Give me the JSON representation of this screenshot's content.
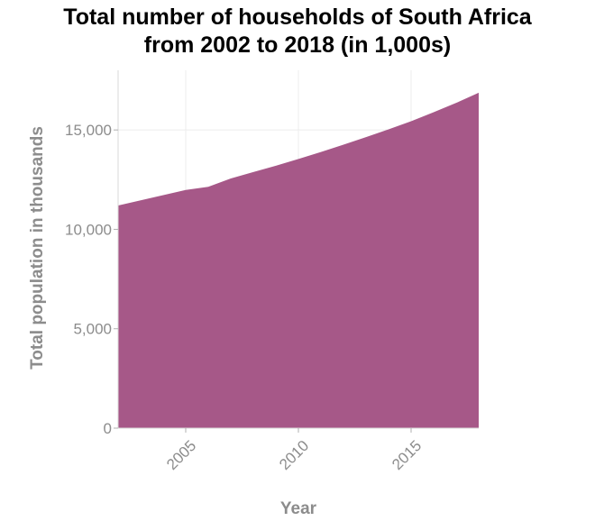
{
  "chart_data": {
    "type": "area",
    "title_lines": [
      "Total number of households of South Africa",
      "from 2002 to 2018 (in 1,000s)"
    ],
    "xlabel": "Year",
    "ylabel": "Total population in thousands",
    "x": [
      2002,
      2003,
      2004,
      2005,
      2006,
      2007,
      2008,
      2009,
      2010,
      2011,
      2012,
      2013,
      2014,
      2015,
      2016,
      2017,
      2018
    ],
    "series": [
      {
        "values": [
          11200,
          11460,
          11720,
          11980,
          12140,
          12560,
          12880,
          13200,
          13540,
          13890,
          14260,
          14640,
          15030,
          15440,
          15890,
          16360,
          16870
        ]
      }
    ],
    "xlim": [
      2002,
      2018
    ],
    "ylim": [
      0,
      18000
    ],
    "xticks": [
      2005,
      2010,
      2015
    ],
    "xtick_labels": [
      "2005",
      "2010",
      "2015"
    ],
    "yticks": [
      0,
      5000,
      10000,
      15000
    ],
    "ytick_labels": [
      "0",
      "5,000",
      "10,000",
      "15,000"
    ],
    "grid": true,
    "fill_color": "#a65888",
    "axis_text_color": "#8c8c8c"
  }
}
